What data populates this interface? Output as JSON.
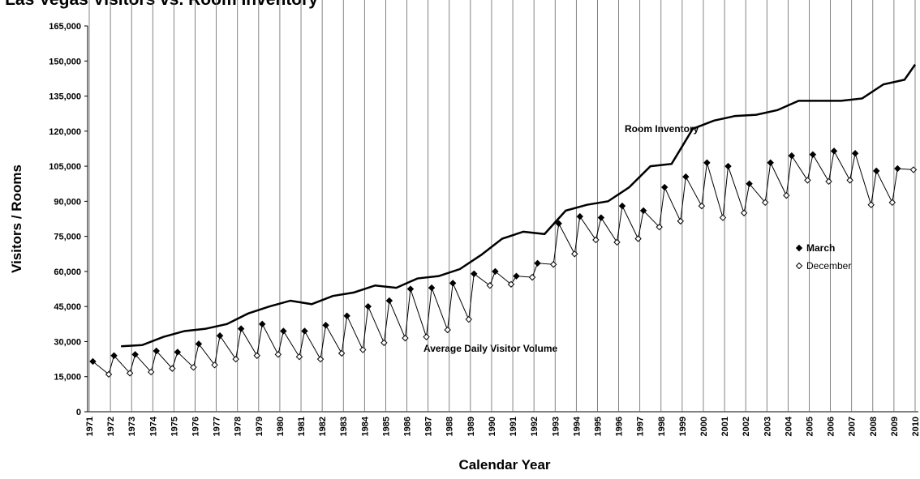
{
  "chart_data": {
    "type": "line",
    "title": "Las Vegas Visitors vs. Room Inventory",
    "x_label": "Calendar Year",
    "y_label": "Visitors / Rooms",
    "annotations": [
      "Room Inventory",
      "Average Daily Visitor Volume"
    ],
    "xlim": [
      1971,
      2010
    ],
    "ylim": [
      0,
      165000
    ],
    "xticks": [
      1971,
      1972,
      1973,
      1974,
      1975,
      1976,
      1977,
      1978,
      1979,
      1980,
      1981,
      1982,
      1983,
      1984,
      1985,
      1986,
      1987,
      1988,
      1989,
      1990,
      1991,
      1992,
      1993,
      1994,
      1995,
      1996,
      1997,
      1998,
      1999,
      2000,
      2001,
      2002,
      2003,
      2004,
      2005,
      2006,
      2007,
      2008,
      2009,
      2010
    ],
    "yticks": [
      0,
      {
        "value": 15000,
        "label": "15,000"
      },
      {
        "value": 30000,
        "label": "30,000"
      },
      {
        "value": 45000,
        "label": "45,000"
      },
      {
        "value": 60000,
        "label": "60,000"
      },
      {
        "value": 75000,
        "label": "75,000"
      },
      {
        "value": 90000,
        "label": "90,000"
      },
      {
        "value": 105000,
        "label": "105,000"
      },
      {
        "value": 120000,
        "label": "120,000"
      },
      {
        "value": 135000,
        "label": "135,000"
      },
      {
        "value": 150000,
        "label": "150,000"
      },
      {
        "value": 165000,
        "label": "165,000"
      }
    ],
    "grid": "x",
    "series": [
      {
        "name": "Room Inventory",
        "color": "#000000",
        "x": [
          1972.5,
          1973.5,
          1974.5,
          1975.5,
          1976.5,
          1977.5,
          1978.5,
          1979.5,
          1980.5,
          1981.5,
          1982.5,
          1983.5,
          1984.5,
          1985.5,
          1986.5,
          1987.5,
          1988.5,
          1989.5,
          1990.5,
          1991.5,
          1992.5,
          1993.5,
          1994.5,
          1995.5,
          1996.5,
          1997.5,
          1998.5,
          1999.5,
          2000.5,
          2001.5,
          2002.5,
          2003.5,
          2004.5,
          2005.5,
          2006.5,
          2007.5,
          2008.5,
          2009.5,
          2010
        ],
        "values": [
          28000,
          28500,
          32000,
          34500,
          35500,
          37500,
          42000,
          45000,
          47500,
          46000,
          49500,
          51000,
          54000,
          53000,
          57000,
          58000,
          61000,
          67000,
          74000,
          77000,
          76000,
          86000,
          88500,
          90000,
          96000,
          105000,
          106000,
          121000,
          124500,
          126500,
          127000,
          129000,
          133000,
          133000,
          133000,
          134000,
          140000,
          142000,
          148500
        ]
      },
      {
        "name": "March",
        "color": "#000000",
        "marker": "filled-diamond",
        "x": [
          1971.17,
          1972.17,
          1973.17,
          1974.17,
          1975.17,
          1976.17,
          1977.17,
          1978.17,
          1979.17,
          1980.17,
          1981.17,
          1982.17,
          1983.17,
          1984.17,
          1985.17,
          1986.17,
          1987.17,
          1988.17,
          1989.17,
          1990.17,
          1991.17,
          1992.17,
          1993.17,
          1994.17,
          1995.17,
          1996.17,
          1997.17,
          1998.17,
          1999.17,
          2000.17,
          2001.17,
          2002.17,
          2003.17,
          2004.17,
          2005.17,
          2006.17,
          2007.17,
          2008.17,
          2009.17
        ],
        "values": [
          21500,
          24000,
          24500,
          26000,
          25500,
          29000,
          32500,
          35500,
          37500,
          34500,
          34500,
          37000,
          41000,
          45000,
          47500,
          52500,
          53000,
          55000,
          59000,
          60000,
          58000,
          63500,
          80500,
          83500,
          83000,
          88000,
          86000,
          96000,
          100500,
          106500,
          105000,
          97500,
          106500,
          109500,
          110000,
          111500,
          110500,
          103000,
          104000
        ]
      },
      {
        "name": "December",
        "color": "#000000",
        "marker": "open-diamond",
        "x": [
          1971.92,
          1972.92,
          1973.92,
          1974.92,
          1975.92,
          1976.92,
          1977.92,
          1978.92,
          1979.92,
          1980.92,
          1981.92,
          1982.92,
          1983.92,
          1984.92,
          1985.92,
          1986.92,
          1987.92,
          1988.92,
          1989.92,
          1990.92,
          1991.92,
          1992.92,
          1993.92,
          1994.92,
          1995.92,
          1996.92,
          1997.92,
          1998.92,
          1999.92,
          2000.92,
          2001.92,
          2002.92,
          2003.92,
          2004.92,
          2005.92,
          2006.92,
          2007.92,
          2008.92,
          2009.92
        ],
        "values": [
          16000,
          16500,
          17000,
          18500,
          19000,
          20000,
          22500,
          24000,
          24500,
          23500,
          22500,
          25000,
          26500,
          29500,
          31500,
          32000,
          35000,
          39500,
          54000,
          54500,
          57500,
          63000,
          67500,
          73500,
          72500,
          74000,
          79000,
          81500,
          88000,
          83000,
          85000,
          89500,
          92500,
          99000,
          98500,
          99000,
          88500,
          89500,
          103500
        ]
      }
    ]
  }
}
